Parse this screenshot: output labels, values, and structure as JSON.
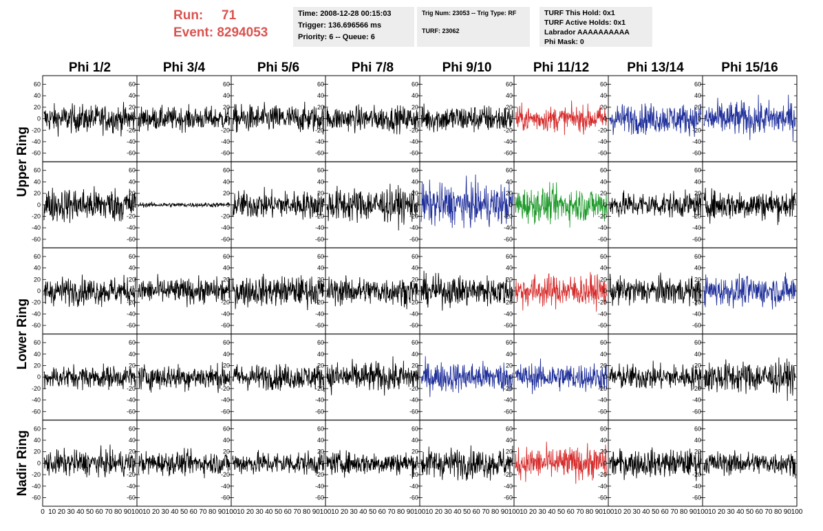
{
  "header": {
    "run_label": "Run:",
    "run_value": "71",
    "event_label": "Event:",
    "event_value": "8294053",
    "time": "Time: 2008-12-28 00:15:03",
    "trigger": "Trigger: 136.696566 ms",
    "priority": "Priority: 6 -- Queue: 6",
    "trig_num": "Trig Num: 23053 -- Trig Type: RF",
    "turf": "TURF: 23062",
    "turf_this_hold": "TURF This Hold: 0x1",
    "turf_active_holds": "TURF Active Holds: 0x1",
    "labrador": "Labrador AAAAAAAAAA",
    "phi_mask": "Phi Mask: 0",
    "title_color": "#d9534f",
    "box_color": "#ededed"
  },
  "chart_data": {
    "type": "line",
    "columns": [
      "Phi 1/2",
      "Phi 3/4",
      "Phi 5/6",
      "Phi 7/8",
      "Phi 9/10",
      "Phi 11/12",
      "Phi 13/14",
      "Phi 15/16"
    ],
    "ring_labels": [
      {
        "label": "Upper Ring",
        "rows": [
          0,
          1
        ]
      },
      {
        "label": "Lower Ring",
        "rows": [
          2,
          3
        ]
      },
      {
        "label": "Nadir Ring",
        "rows": [
          4
        ]
      }
    ],
    "xlim": [
      0,
      100
    ],
    "ylim": [
      -75,
      75
    ],
    "y_ticks": [
      -60,
      -40,
      -20,
      0,
      20,
      40,
      60
    ],
    "x_tick_labels": [
      "0",
      "10",
      "20",
      "30",
      "40",
      "50",
      "60",
      "70",
      "80",
      "90",
      "100"
    ],
    "colors": {
      "black": "#000000",
      "red": "#d62a2a",
      "blue": "#1f2f9a",
      "green": "#1e9a2a"
    },
    "panels": [
      [
        {
          "color": "black",
          "amp": 12
        },
        {
          "color": "black",
          "amp": 10
        },
        {
          "color": "black",
          "amp": 12
        },
        {
          "color": "black",
          "amp": 11
        },
        {
          "color": "black",
          "amp": 12
        },
        {
          "color": "red",
          "amp": 11
        },
        {
          "color": "blue",
          "amp": 13
        },
        {
          "color": "blue",
          "amp": 15
        }
      ],
      [
        {
          "color": "black",
          "amp": 15
        },
        {
          "color": "black",
          "amp": 2
        },
        {
          "color": "black",
          "amp": 12
        },
        {
          "color": "black",
          "amp": 15
        },
        {
          "color": "blue",
          "amp": 18
        },
        {
          "color": "green",
          "amp": 15
        },
        {
          "color": "black",
          "amp": 11
        },
        {
          "color": "black",
          "amp": 13
        }
      ],
      [
        {
          "color": "black",
          "amp": 12
        },
        {
          "color": "black",
          "amp": 11
        },
        {
          "color": "black",
          "amp": 13
        },
        {
          "color": "black",
          "amp": 12
        },
        {
          "color": "black",
          "amp": 13
        },
        {
          "color": "red",
          "amp": 14
        },
        {
          "color": "black",
          "amp": 12
        },
        {
          "color": "blue",
          "amp": 13
        }
      ],
      [
        {
          "color": "black",
          "amp": 10
        },
        {
          "color": "black",
          "amp": 11
        },
        {
          "color": "black",
          "amp": 11
        },
        {
          "color": "black",
          "amp": 13
        },
        {
          "color": "blue",
          "amp": 13
        },
        {
          "color": "blue",
          "amp": 12
        },
        {
          "color": "black",
          "amp": 11
        },
        {
          "color": "black",
          "amp": 14
        }
      ],
      [
        {
          "color": "black",
          "amp": 11
        },
        {
          "color": "black",
          "amp": 10
        },
        {
          "color": "black",
          "amp": 10
        },
        {
          "color": "black",
          "amp": 10
        },
        {
          "color": "black",
          "amp": 13
        },
        {
          "color": "red",
          "amp": 14
        },
        {
          "color": "black",
          "amp": 12
        },
        {
          "color": "black",
          "amp": 10
        }
      ]
    ]
  }
}
